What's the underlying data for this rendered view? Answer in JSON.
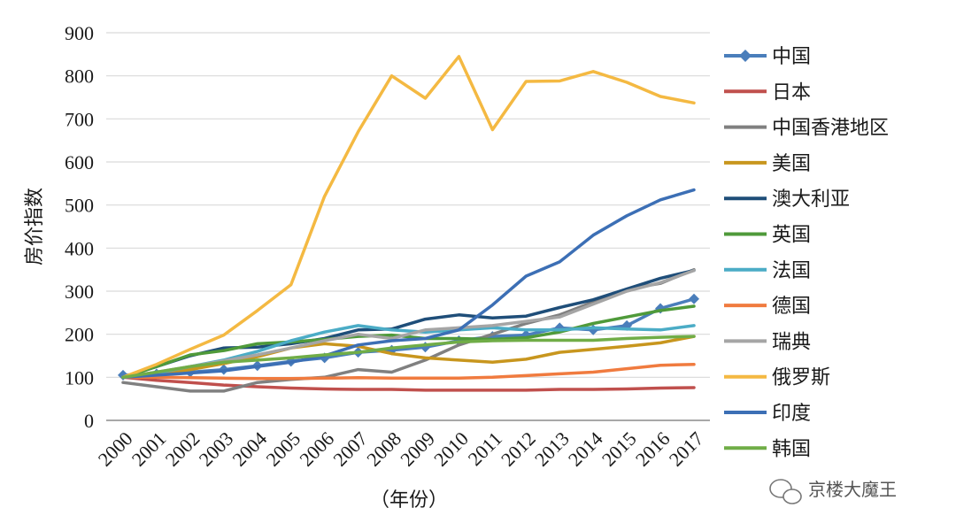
{
  "chart_data": {
    "type": "line",
    "title": "",
    "xlabel": "（年份）",
    "ylabel": "房价指数",
    "ylim": [
      0,
      900
    ],
    "yticks": [
      0,
      100,
      200,
      300,
      400,
      500,
      600,
      700,
      800,
      900
    ],
    "grid": true,
    "legend_position": "right",
    "categories": [
      "2000",
      "2001",
      "2002",
      "2003",
      "2004",
      "2005",
      "2006",
      "2007",
      "2008",
      "2009",
      "2010",
      "2011",
      "2012",
      "2013",
      "2014",
      "2015",
      "2016",
      "2017"
    ],
    "series": [
      {
        "name": "中国",
        "color": "#4a7ebb",
        "marker": "diamond",
        "values": [
          105,
          108,
          112,
          118,
          127,
          137,
          145,
          158,
          163,
          170,
          185,
          195,
          198,
          215,
          210,
          220,
          260,
          282
        ]
      },
      {
        "name": "日本",
        "color": "#c0504d",
        "values": [
          100,
          93,
          88,
          82,
          78,
          75,
          73,
          72,
          72,
          70,
          70,
          70,
          70,
          72,
          72,
          73,
          75,
          76
        ]
      },
      {
        "name": "中国香港地区",
        "color": "#808080",
        "values": [
          88,
          78,
          68,
          68,
          88,
          95,
          100,
          118,
          112,
          140,
          175,
          200,
          225,
          245,
          275,
          305,
          318,
          350
        ]
      },
      {
        "name": "美国",
        "color": "#c8961e",
        "values": [
          100,
          108,
          118,
          132,
          148,
          168,
          178,
          172,
          155,
          145,
          140,
          135,
          142,
          158,
          165,
          172,
          180,
          195
        ]
      },
      {
        "name": "澳大利亚",
        "color": "#1f4e79",
        "values": [
          100,
          125,
          150,
          168,
          170,
          178,
          190,
          210,
          212,
          235,
          245,
          238,
          242,
          262,
          280,
          305,
          330,
          348
        ]
      },
      {
        "name": "英国",
        "color": "#4f9a3a",
        "values": [
          100,
          125,
          152,
          162,
          178,
          182,
          188,
          195,
          198,
          190,
          190,
          188,
          192,
          205,
          225,
          240,
          255,
          265
        ]
      },
      {
        "name": "法国",
        "color": "#4bacc6",
        "values": [
          100,
          110,
          125,
          140,
          160,
          185,
          205,
          220,
          210,
          205,
          210,
          215,
          210,
          210,
          215,
          212,
          210,
          220
        ]
      },
      {
        "name": "德国",
        "color": "#f07b3f",
        "values": [
          100,
          100,
          99,
          98,
          97,
          97,
          98,
          99,
          98,
          98,
          98,
          100,
          104,
          108,
          112,
          120,
          128,
          130
        ]
      },
      {
        "name": "瑞典",
        "color": "#a5a5a5",
        "values": [
          100,
          112,
          125,
          138,
          152,
          168,
          185,
          200,
          190,
          210,
          215,
          220,
          230,
          240,
          270,
          300,
          320,
          348
        ]
      },
      {
        "name": "俄罗斯",
        "color": "#f4b942",
        "values": [
          100,
          130,
          165,
          198,
          255,
          315,
          520,
          670,
          800,
          748,
          845,
          675,
          787,
          788,
          810,
          785,
          752,
          737
        ]
      },
      {
        "name": "印度",
        "color": "#3c6fb5",
        "values": [
          100,
          105,
          110,
          115,
          125,
          135,
          150,
          175,
          185,
          190,
          210,
          268,
          335,
          368,
          430,
          475,
          512,
          535
        ]
      },
      {
        "name": "韩国",
        "color": "#70ad47",
        "values": [
          100,
          112,
          125,
          135,
          140,
          145,
          152,
          158,
          168,
          175,
          182,
          185,
          186,
          186,
          186,
          190,
          193,
          195
        ]
      }
    ]
  },
  "watermark": {
    "text": "京楼大魔王",
    "icon": "wechat-icon"
  }
}
